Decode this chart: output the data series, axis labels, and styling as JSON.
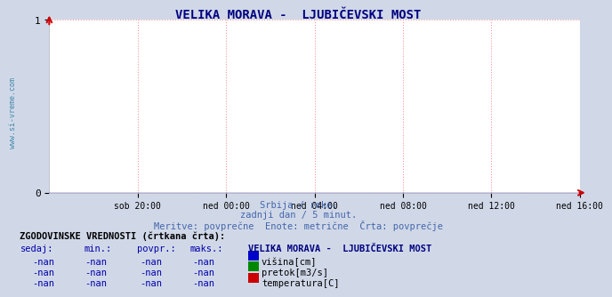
{
  "title": "VELIKA MORAVA -  LJUBIČEVSKI MOST",
  "bg_color": "#d0d8e8",
  "plot_bg_color": "#ffffff",
  "title_color": "#000080",
  "watermark": "www.si-vreme.com",
  "x_labels": [
    "sob 20:00",
    "ned 00:00",
    "ned 04:00",
    "ned 08:00",
    "ned 12:00",
    "ned 16:00"
  ],
  "ylim": [
    0,
    1
  ],
  "yticks": [
    0,
    1
  ],
  "ytick_labels": [
    "0",
    "1"
  ],
  "grid_color": "#ff9999",
  "subtitle_lines": [
    "Srbija / reke.",
    "zadnji dan / 5 minut.",
    "Meritve: povprečne  Enote: metrične  Črta: povprečje"
  ],
  "subtitle_color": "#4466aa",
  "table_header": "ZGODOVINSKE VREDNOSTI (črtkana črta):",
  "col_headers": [
    "sedaj:",
    "min.:",
    "povpr.:",
    "maks.:"
  ],
  "station_label": "VELIKA MORAVA -  LJUBIČEVSKI MOST",
  "series": [
    {
      "label": "višina[cm]",
      "color": "#0000cc"
    },
    {
      "label": "pretok[m3/s]",
      "color": "#008800"
    },
    {
      "label": "temperatura[C]",
      "color": "#cc0000"
    }
  ],
  "nan_value": "-nan",
  "arrow_color": "#cc0000"
}
